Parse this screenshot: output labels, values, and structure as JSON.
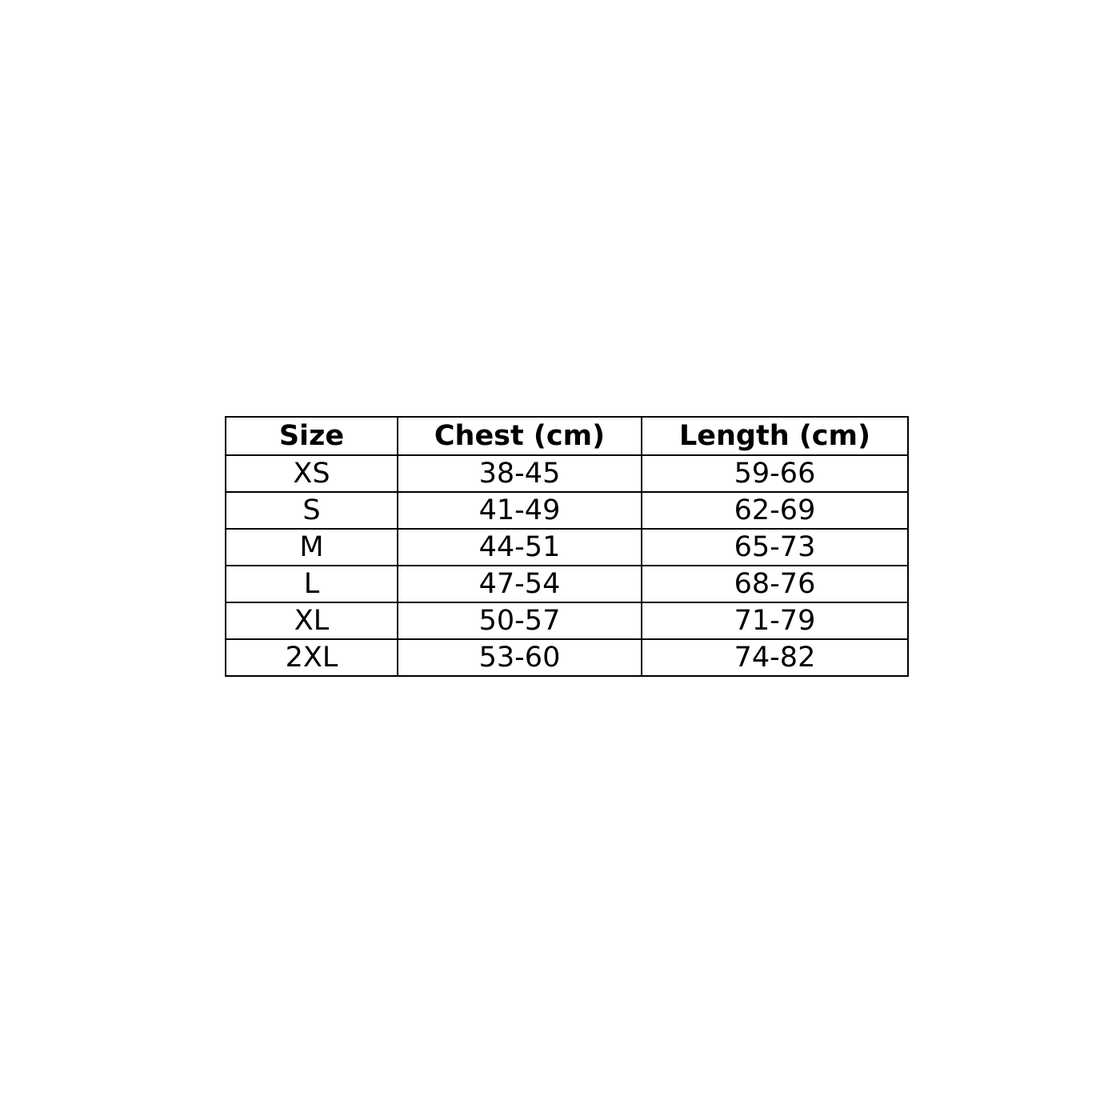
{
  "table": {
    "headers": [
      "Size",
      "Chest (cm)",
      "Length (cm)"
    ],
    "rows": [
      [
        "XS",
        "38-45",
        "59-66"
      ],
      [
        "S",
        "41-49",
        "62-69"
      ],
      [
        "M",
        "44-51",
        "65-73"
      ],
      [
        "L",
        "47-54",
        "68-76"
      ],
      [
        "XL",
        "50-57",
        "71-79"
      ],
      [
        "2XL",
        "53-60",
        "74-82"
      ]
    ]
  }
}
